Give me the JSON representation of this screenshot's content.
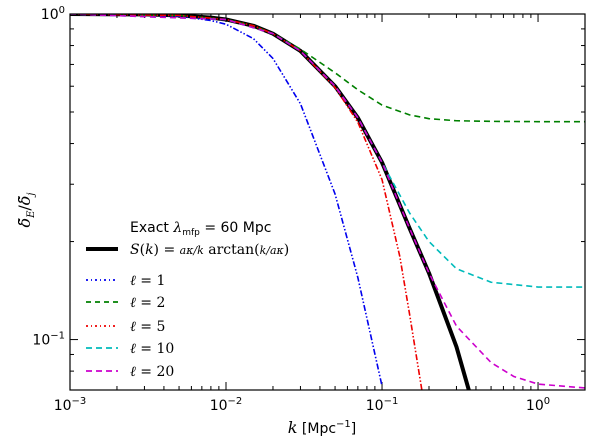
{
  "chart_data": {
    "type": "line",
    "title": "",
    "xlabel": "k [Mpc⁻¹]",
    "ylabel": "δ̃_E/δ̃_j",
    "xscale": "log",
    "yscale": "log",
    "xlim": [
      0.001,
      2
    ],
    "ylim": [
      0.07,
      1.0
    ],
    "x_tick_labels": [
      "10-3",
      "10-2",
      "10-1",
      "100"
    ],
    "y_tick_labels": [
      "100",
      "10-1"
    ],
    "legend": {
      "location": "lower-left",
      "header": "Exact λ_mfp = 60 Mpc"
    },
    "series": [
      {
        "name": "S(k) = (aκ/k) arctan(k/(aκ))",
        "color": "#000000",
        "style": "solid",
        "x": [
          0.001,
          0.003,
          0.005,
          0.008,
          0.01,
          0.015,
          0.02,
          0.03,
          0.05,
          0.07,
          0.1,
          0.15,
          0.2,
          0.3,
          0.36
        ],
        "y": [
          1.0,
          0.997,
          0.99,
          0.975,
          0.962,
          0.92,
          0.87,
          0.77,
          0.6,
          0.48,
          0.35,
          0.22,
          0.16,
          0.095,
          0.07
        ]
      },
      {
        "name": "ℓ = 1",
        "color": "#0000ee",
        "style": "dash-dot-dot",
        "x": [
          0.001,
          0.003,
          0.005,
          0.008,
          0.01,
          0.015,
          0.02,
          0.03,
          0.05,
          0.07,
          0.1
        ],
        "y": [
          1.0,
          0.995,
          0.985,
          0.955,
          0.93,
          0.84,
          0.73,
          0.53,
          0.28,
          0.155,
          0.072
        ]
      },
      {
        "name": "ℓ = 2",
        "color": "#008000",
        "style": "dashed",
        "x": [
          0.001,
          0.005,
          0.01,
          0.015,
          0.02,
          0.03,
          0.05,
          0.07,
          0.1,
          0.15,
          0.2,
          0.3,
          0.5,
          1.0,
          2.0
        ],
        "y": [
          1.0,
          0.99,
          0.962,
          0.92,
          0.87,
          0.78,
          0.66,
          0.585,
          0.525,
          0.49,
          0.477,
          0.47,
          0.468,
          0.467,
          0.467
        ]
      },
      {
        "name": "ℓ = 5",
        "color": "#ee0000",
        "style": "dash-dot-dot",
        "x": [
          0.001,
          0.005,
          0.01,
          0.015,
          0.02,
          0.03,
          0.05,
          0.07,
          0.1,
          0.13,
          0.15,
          0.18
        ],
        "y": [
          1.0,
          0.99,
          0.962,
          0.92,
          0.87,
          0.77,
          0.595,
          0.465,
          0.31,
          0.18,
          0.12,
          0.07
        ]
      },
      {
        "name": "ℓ = 10",
        "color": "#00bbbb",
        "style": "dashed",
        "x": [
          0.001,
          0.01,
          0.02,
          0.03,
          0.05,
          0.07,
          0.1,
          0.15,
          0.2,
          0.3,
          0.5,
          1.0,
          2.0
        ],
        "y": [
          1.0,
          0.962,
          0.87,
          0.77,
          0.6,
          0.48,
          0.35,
          0.245,
          0.2,
          0.165,
          0.15,
          0.145,
          0.145
        ]
      },
      {
        "name": "ℓ = 20",
        "color": "#cc00cc",
        "style": "dashed",
        "x": [
          0.001,
          0.01,
          0.02,
          0.03,
          0.05,
          0.07,
          0.1,
          0.15,
          0.2,
          0.3,
          0.5,
          0.7,
          1.0,
          2.0
        ],
        "y": [
          1.0,
          0.962,
          0.87,
          0.77,
          0.6,
          0.48,
          0.35,
          0.22,
          0.16,
          0.11,
          0.085,
          0.077,
          0.073,
          0.071
        ]
      }
    ]
  }
}
